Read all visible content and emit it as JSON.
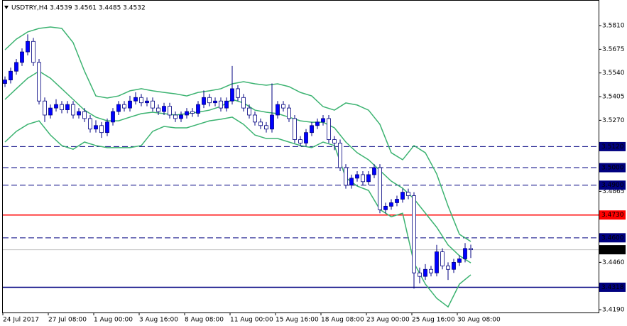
{
  "chart_data": {
    "type": "candlestick",
    "title": "USDTRY,H4  3.4539 3.4561 3.4485 3.4532",
    "ylim": [
      3.4174,
      3.5956
    ],
    "yticks": [
      {
        "value": 3.581,
        "label": "3.5810"
      },
      {
        "value": 3.5675,
        "label": "3.5675"
      },
      {
        "value": 3.554,
        "label": "3.5540"
      },
      {
        "value": 3.5405,
        "label": "3.5405"
      },
      {
        "value": 3.527,
        "label": "3.5270"
      },
      {
        "value": 3.4865,
        "label": "3.4865"
      },
      {
        "value": 3.446,
        "label": "3.4460"
      },
      {
        "value": 3.419,
        "label": "3.4190"
      }
    ],
    "x_labels": [
      "24 Jul 2017",
      "27 Jul 08:00",
      "1 Aug 00:00",
      "3 Aug 16:00",
      "8 Aug 08:00",
      "11 Aug 00:00",
      "15 Aug 16:00",
      "18 Aug 08:00",
      "23 Aug 00:00",
      "25 Aug 16:00",
      "30 Aug 08:00"
    ],
    "bull_color": "#0000ff",
    "bear_color": "#ffffff",
    "wick_color": "#000080",
    "band_color": "#3cb371",
    "candles": [
      [
        3.548,
        3.552,
        3.546,
        3.55
      ],
      [
        3.55,
        3.557,
        3.548,
        3.555
      ],
      [
        3.555,
        3.562,
        3.553,
        3.56
      ],
      [
        3.56,
        3.568,
        3.558,
        3.566
      ],
      [
        3.566,
        3.576,
        3.564,
        3.572
      ],
      [
        3.572,
        3.574,
        3.558,
        3.56
      ],
      [
        3.56,
        3.562,
        3.536,
        3.538
      ],
      [
        3.538,
        3.54,
        3.526,
        3.53
      ],
      [
        3.53,
        3.536,
        3.528,
        3.534
      ],
      [
        3.534,
        3.539,
        3.532,
        3.536
      ],
      [
        3.536,
        3.538,
        3.531,
        3.533
      ],
      [
        3.533,
        3.538,
        3.531,
        3.536
      ],
      [
        3.536,
        3.538,
        3.528,
        3.53
      ],
      [
        3.53,
        3.534,
        3.528,
        3.532
      ],
      [
        3.532,
        3.534,
        3.526,
        3.528
      ],
      [
        3.528,
        3.53,
        3.52,
        3.522
      ],
      [
        3.522,
        3.527,
        3.52,
        3.524
      ],
      [
        3.524,
        3.526,
        3.517,
        3.52
      ],
      [
        3.52,
        3.528,
        3.518,
        3.526
      ],
      [
        3.526,
        3.534,
        3.524,
        3.532
      ],
      [
        3.532,
        3.538,
        3.53,
        3.536
      ],
      [
        3.536,
        3.538,
        3.532,
        3.534
      ],
      [
        3.534,
        3.541,
        3.532,
        3.538
      ],
      [
        3.538,
        3.543,
        3.536,
        3.54
      ],
      [
        3.54,
        3.542,
        3.535,
        3.537
      ],
      [
        3.537,
        3.54,
        3.535,
        3.538
      ],
      [
        3.538,
        3.54,
        3.532,
        3.534
      ],
      [
        3.534,
        3.536,
        3.53,
        3.532
      ],
      [
        3.532,
        3.537,
        3.53,
        3.535
      ],
      [
        3.535,
        3.537,
        3.528,
        3.53
      ],
      [
        3.53,
        3.532,
        3.526,
        3.528
      ],
      [
        3.528,
        3.532,
        3.526,
        3.53
      ],
      [
        3.53,
        3.534,
        3.528,
        3.532
      ],
      [
        3.532,
        3.534,
        3.529,
        3.531
      ],
      [
        3.531,
        3.538,
        3.529,
        3.536
      ],
      [
        3.536,
        3.544,
        3.534,
        3.54
      ],
      [
        3.54,
        3.542,
        3.535,
        3.537
      ],
      [
        3.537,
        3.54,
        3.535,
        3.538
      ],
      [
        3.538,
        3.54,
        3.532,
        3.534
      ],
      [
        3.534,
        3.54,
        3.532,
        3.538
      ],
      [
        3.538,
        3.558,
        3.536,
        3.545
      ],
      [
        3.545,
        3.547,
        3.538,
        3.54
      ],
      [
        3.54,
        3.542,
        3.532,
        3.534
      ],
      [
        3.534,
        3.536,
        3.528,
        3.53
      ],
      [
        3.53,
        3.532,
        3.524,
        3.526
      ],
      [
        3.526,
        3.528,
        3.522,
        3.524
      ],
      [
        3.524,
        3.526,
        3.52,
        3.522
      ],
      [
        3.522,
        3.548,
        3.52,
        3.53
      ],
      [
        3.53,
        3.538,
        3.528,
        3.536
      ],
      [
        3.536,
        3.538,
        3.532,
        3.534
      ],
      [
        3.534,
        3.536,
        3.526,
        3.528
      ],
      [
        3.528,
        3.53,
        3.514,
        3.516
      ],
      [
        3.516,
        3.518,
        3.512,
        3.514
      ],
      [
        3.514,
        3.522,
        3.512,
        3.52
      ],
      [
        3.52,
        3.526,
        3.518,
        3.524
      ],
      [
        3.524,
        3.528,
        3.522,
        3.526
      ],
      [
        3.526,
        3.53,
        3.524,
        3.528
      ],
      [
        3.528,
        3.53,
        3.514,
        3.516
      ],
      [
        3.516,
        3.518,
        3.51,
        3.514
      ],
      [
        3.514,
        3.516,
        3.498,
        3.5
      ],
      [
        3.5,
        3.502,
        3.488,
        3.49
      ],
      [
        3.49,
        3.496,
        3.488,
        3.494
      ],
      [
        3.494,
        3.498,
        3.492,
        3.496
      ],
      [
        3.496,
        3.498,
        3.49,
        3.492
      ],
      [
        3.492,
        3.498,
        3.49,
        3.496
      ],
      [
        3.496,
        3.502,
        3.494,
        3.5
      ],
      [
        3.5,
        3.502,
        3.474,
        3.476
      ],
      [
        3.476,
        3.48,
        3.474,
        3.478
      ],
      [
        3.478,
        3.482,
        3.476,
        3.48
      ],
      [
        3.48,
        3.484,
        3.478,
        3.482
      ],
      [
        3.482,
        3.488,
        3.48,
        3.486
      ],
      [
        3.486,
        3.488,
        3.482,
        3.484
      ],
      [
        3.484,
        3.486,
        3.431,
        3.44
      ],
      [
        3.44,
        3.443,
        3.434,
        3.438
      ],
      [
        3.438,
        3.445,
        3.436,
        3.442
      ],
      [
        3.442,
        3.444,
        3.438,
        3.44
      ],
      [
        3.44,
        3.456,
        3.438,
        3.452
      ],
      [
        3.452,
        3.454,
        3.442,
        3.444
      ],
      [
        3.444,
        3.446,
        3.436,
        3.442
      ],
      [
        3.442,
        3.448,
        3.44,
        3.446
      ],
      [
        3.446,
        3.45,
        3.444,
        3.448
      ],
      [
        3.448,
        3.457,
        3.446,
        3.4539
      ],
      [
        3.4539,
        3.4561,
        3.4485,
        3.4532
      ]
    ],
    "bands": {
      "x": [
        0,
        2,
        4,
        6,
        8,
        10,
        12,
        14,
        16,
        18,
        20,
        22,
        24,
        26,
        28,
        30,
        32,
        34,
        36,
        38,
        40,
        42,
        44,
        46,
        48,
        50,
        52,
        54,
        56,
        58,
        60,
        62,
        64,
        66,
        68,
        70,
        72,
        74,
        76,
        78,
        80,
        82
      ],
      "upper": [
        3.5672,
        3.5733,
        3.5774,
        3.5794,
        3.5802,
        3.5794,
        3.5713,
        3.555,
        3.5409,
        3.5397,
        3.5409,
        3.5438,
        3.545,
        3.5438,
        3.5429,
        3.5421,
        3.5409,
        3.5429,
        3.5438,
        3.545,
        3.5478,
        3.549,
        3.5478,
        3.547,
        3.5478,
        3.5462,
        3.5429,
        3.5409,
        3.5348,
        3.5328,
        3.5369,
        3.5357,
        3.5328,
        3.5247,
        3.5085,
        3.5045,
        3.5126,
        3.5085,
        3.4964,
        3.4781,
        3.462,
        3.4579
      ],
      "middle": [
        3.5389,
        3.545,
        3.551,
        3.555,
        3.551,
        3.545,
        3.5389,
        3.5328,
        3.5288,
        3.5267,
        3.5267,
        3.5288,
        3.5308,
        3.5316,
        3.5308,
        3.53,
        3.5308,
        3.5316,
        3.5328,
        3.5349,
        3.5389,
        3.5369,
        3.5328,
        3.5316,
        3.5308,
        3.5288,
        3.5267,
        3.5259,
        3.5259,
        3.5227,
        3.5146,
        3.5085,
        3.5045,
        3.4984,
        3.4923,
        3.4883,
        3.4822,
        3.4741,
        3.466,
        3.4559,
        3.4498,
        3.4457
      ],
      "lower": [
        3.5146,
        3.5207,
        3.5247,
        3.5267,
        3.5186,
        3.5126,
        3.5105,
        3.5146,
        3.5126,
        3.5114,
        3.5114,
        3.5114,
        3.5126,
        3.5207,
        3.5235,
        3.5227,
        3.5227,
        3.5247,
        3.5267,
        3.5276,
        3.5288,
        3.5247,
        3.5186,
        3.5166,
        3.5166,
        3.5146,
        3.5126,
        3.5114,
        3.5146,
        3.5126,
        3.4943,
        3.4895,
        3.487,
        3.4761,
        3.472,
        3.474,
        3.4457,
        3.4336,
        3.4255,
        3.4206,
        3.4336,
        3.4389
      ]
    },
    "levels": [
      {
        "value": 3.512,
        "label": "3.5120",
        "color": "#000080",
        "style": "dashed"
      },
      {
        "value": 3.5,
        "label": "3.5000",
        "color": "#000080",
        "style": "dashed"
      },
      {
        "value": 3.49,
        "label": "3.4900",
        "color": "#000080",
        "style": "dashed"
      },
      {
        "value": 3.473,
        "label": "3.4730",
        "color": "#ff0000",
        "style": "solid"
      },
      {
        "value": 3.46,
        "label": "3.4600",
        "color": "#000080",
        "style": "dashed"
      },
      {
        "value": 3.4318,
        "label": "3.4318",
        "color": "#000080",
        "style": "solid"
      }
    ],
    "last_price": {
      "value": 3.4532,
      "label": "3.4532",
      "color": "#c0c0c0",
      "label_bg": "#000000"
    }
  }
}
